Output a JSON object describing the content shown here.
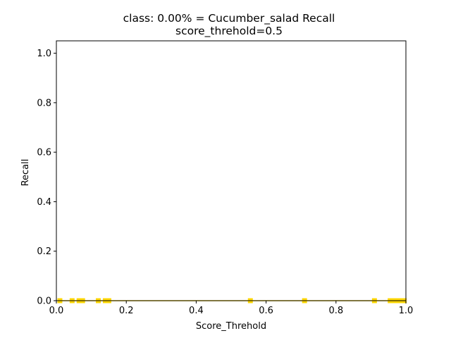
{
  "chart_data": {
    "type": "line",
    "title": "class: 0.00% = Cucumber_salad Recall",
    "subtitle": "score_threhold=0.5",
    "xlabel": "Score_Threhold",
    "ylabel": "Recall",
    "xlim": [
      0.0,
      1.0
    ],
    "ylim": [
      0.0,
      1.05
    ],
    "x_ticks": [
      "0.0",
      "0.2",
      "0.4",
      "0.6",
      "0.8",
      "1.0"
    ],
    "y_ticks": [
      "0.0",
      "0.2",
      "0.4",
      "0.6",
      "0.8",
      "1.0"
    ],
    "grid": false,
    "legend": "none",
    "series": [
      {
        "color": "#ffd700",
        "x": [
          0.01,
          0.045,
          0.065,
          0.075,
          0.12,
          0.14,
          0.15,
          0.555,
          0.71,
          0.91,
          0.955,
          0.965,
          0.975,
          0.985,
          0.995
        ],
        "y": [
          0,
          0,
          0,
          0,
          0,
          0,
          0,
          0,
          0,
          0,
          0,
          0,
          0,
          0,
          0
        ]
      }
    ]
  }
}
